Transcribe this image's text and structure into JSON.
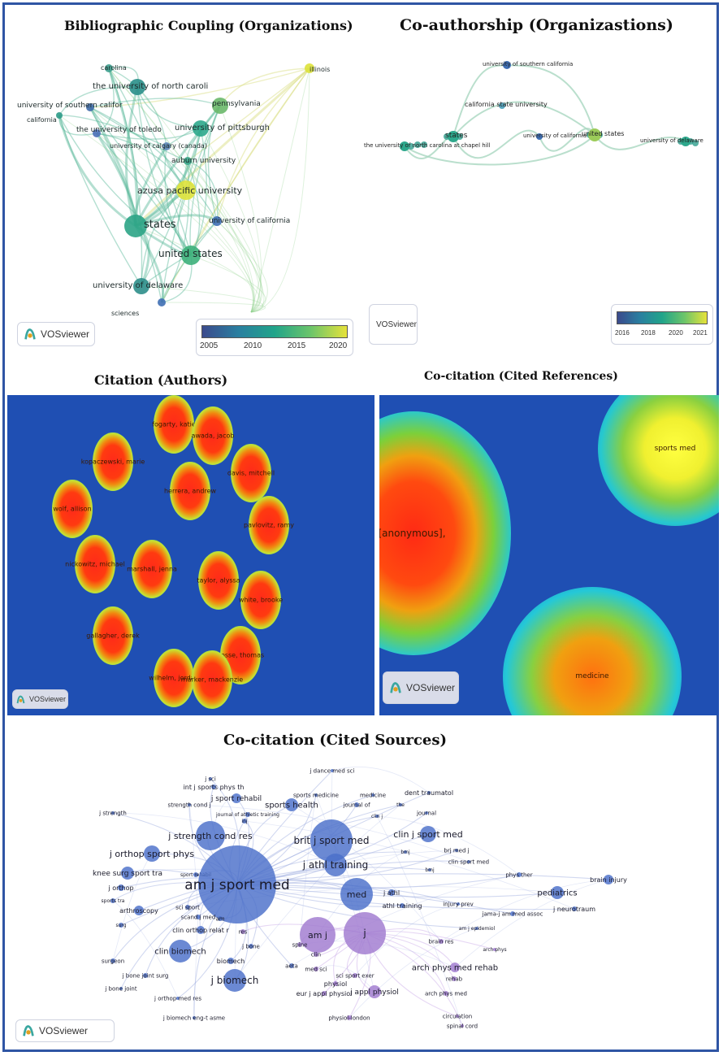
{
  "panels": {
    "bib_coupling": {
      "title": "Bibliographic Coupling (Organizations)",
      "labels": [
        "illinois",
        "carolina",
        "the university of north caroli",
        "university of southern califor",
        "california",
        "the university of toledo",
        "pennsylvania",
        "university of pittsburgh",
        "university of calgary (canada)",
        "auburn university",
        "azusa pacific university",
        "states",
        "university of california",
        "united states",
        "university of delaware",
        "sciences"
      ],
      "legend_ticks": [
        "2005",
        "2010",
        "2015",
        "2020"
      ]
    },
    "coauthorship": {
      "title": "Co-authorship (Organizastions)",
      "labels": [
        "university of southern california",
        "california state university",
        "states",
        "university of california",
        "united states",
        "university of delaware",
        "the university of north carolina at chapel hill"
      ],
      "legend_ticks": [
        "2016",
        "2018",
        "2020",
        "2021"
      ]
    },
    "citation_authors": {
      "title": "Citation (Authors)",
      "labels": [
        "fogarty, katie",
        "awada, jacob",
        "kopaczewski, marie",
        "davis, mitchell",
        "herrera, andrew",
        "wolf, allison",
        "pavlovitz, ramy",
        "nickowitz, michael",
        "marshall, jenna",
        "taylor, alyssa",
        "white, brooke",
        "gallagher, derek",
        "gosse, thomas",
        "wilhelm, jordan",
        "marker, mackenzie"
      ]
    },
    "cocitation_refs": {
      "title": "Co-citation (Cited References)",
      "labels": [
        "[anonymous],",
        "sports med",
        "medicine"
      ]
    },
    "cocitation_sources": {
      "title": "Co-citation (Cited Sources)",
      "labels": [
        "j dance med sci",
        "j sci",
        "int j sports phys th",
        "sports medicine",
        "medicine",
        "dent traumatol",
        "strength cond j",
        "j sport rehabil",
        "sports health",
        "journal of",
        "the",
        "j strength",
        "journal of athletic training",
        "inj",
        "clin j",
        "journal",
        "j strength cond res",
        "brit j sport med",
        "clin j sport med",
        "j orthop sport phys",
        "bmj",
        "brj med j",
        "knee surg sport tra",
        "sport rehabil",
        "j athl training",
        "clin sport med",
        "bmj",
        "phys ther",
        "brain injury",
        "j orthop",
        "am j sport med",
        "med",
        "j athl",
        "pediatrics",
        "sports tra",
        "injury prev",
        "j neurotraum",
        "arthroscopy",
        "sci sport",
        "athl training",
        "jama-j am med assoc",
        "scand j med",
        "am j epidemiol",
        "surg",
        "clin orthop relat r",
        "am",
        "res",
        "am j",
        "j",
        "brain res",
        "arch phys",
        "clin biomech",
        "spine",
        "j bone",
        "clin",
        "arch phys med rehab",
        "surgeon",
        "biomech",
        "aeta",
        "med sci",
        "sci sport exer",
        "rehab",
        "j bone joint surg",
        "j biomech",
        "physiol",
        "eur j appl physiol",
        "j appl physiol",
        "arch phys med",
        "j bone joint",
        "j orthop med res",
        "j biomech eng-t asme",
        "physiol-london",
        "circulation",
        "spinal cord"
      ]
    },
    "vos_label": "VOSviewer"
  },
  "colors": {
    "frame": "#2f55a4",
    "heat_bg": "#1f4fb3",
    "node_blue": "#4a6fc9",
    "node_purple": "#a07ad0",
    "node_teal": "#2aa486",
    "node_yellow": "#dde23a"
  }
}
